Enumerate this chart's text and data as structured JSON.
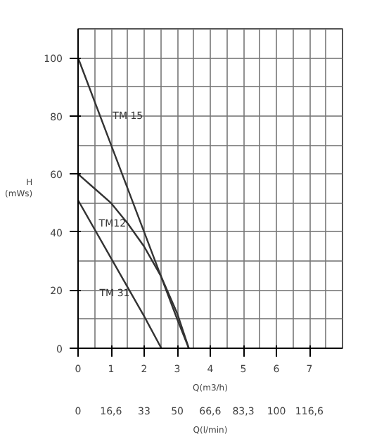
{
  "chart_data": {
    "type": "line",
    "xlabel": "Q(m3/h)",
    "x2label": "Q(l/min)",
    "ylabel": "H\n(mWs)",
    "xlim": [
      0,
      8
    ],
    "xticks": [
      0,
      1,
      2,
      3,
      4,
      5,
      6,
      7
    ],
    "x2lim": [
      0,
      133.3
    ],
    "x2ticks": [
      0,
      {
        "value": 16.6,
        "label": "16,6"
      },
      {
        "value": 33.3,
        "label": "33"
      },
      {
        "value": 50,
        "label": "50"
      },
      {
        "value": 66.6,
        "label": "66,6"
      },
      {
        "value": 83.3,
        "label": "83,3"
      },
      {
        "value": 100,
        "label": "100"
      },
      {
        "value": 116.6,
        "label": "116,6"
      }
    ],
    "ylim": [
      0,
      110
    ],
    "yticks": [
      0,
      20,
      40,
      60,
      80,
      100
    ],
    "grid": true,
    "marker": "none",
    "line_style": "solid",
    "series": [
      {
        "name": "TM 15",
        "color": "#333333",
        "x": [
          0,
          1,
          2,
          3,
          3.35
        ],
        "values": [
          100,
          70,
          40,
          10,
          0
        ]
      },
      {
        "name": "TM12",
        "color": "#333333",
        "x": [
          0,
          0.5,
          1,
          1.5,
          2,
          2.5,
          3,
          3.35
        ],
        "values": [
          60,
          55,
          50,
          43,
          35,
          25,
          12,
          0
        ]
      },
      {
        "name": "TM 31",
        "color": "#333333",
        "x": [
          0,
          1,
          2,
          2.52
        ],
        "values": [
          51,
          31,
          11,
          0
        ]
      }
    ]
  }
}
